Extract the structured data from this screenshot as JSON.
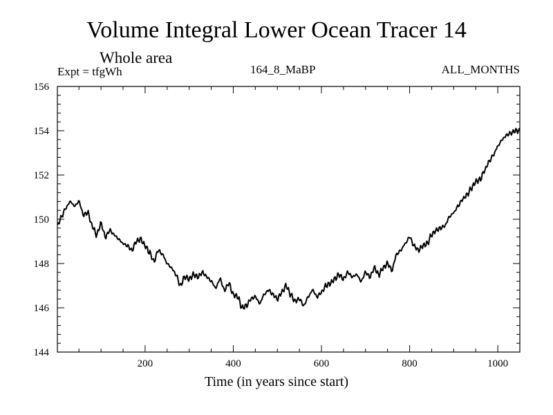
{
  "chart_data": {
    "type": "line",
    "title": "Volume Integral Lower Ocean Tracer 14",
    "subtitle": "Whole area",
    "annotations": {
      "left": "Expt = tfgWh",
      "center": "164_8_MaBP",
      "right": "ALL_MONTHS"
    },
    "xlabel": "Time (in years since start)",
    "ylabel": "",
    "xlim": [
      1,
      1050
    ],
    "ylim": [
      144,
      156
    ],
    "xticks": [
      200,
      400,
      600,
      800,
      1000
    ],
    "yticks": [
      144,
      146,
      148,
      150,
      152,
      154,
      156
    ],
    "grid": false,
    "series": [
      {
        "name": "Volume Integral Lower Ocean Tracer 14",
        "x": [
          1,
          10,
          20,
          30,
          40,
          50,
          60,
          70,
          80,
          90,
          100,
          110,
          120,
          130,
          140,
          150,
          160,
          170,
          180,
          190,
          200,
          210,
          220,
          230,
          240,
          250,
          260,
          270,
          280,
          290,
          300,
          310,
          320,
          330,
          340,
          350,
          360,
          370,
          380,
          390,
          400,
          410,
          420,
          430,
          440,
          450,
          460,
          470,
          480,
          490,
          500,
          510,
          520,
          530,
          540,
          550,
          560,
          570,
          580,
          590,
          600,
          610,
          620,
          630,
          640,
          650,
          660,
          670,
          680,
          690,
          700,
          710,
          720,
          730,
          740,
          750,
          760,
          770,
          780,
          790,
          800,
          810,
          820,
          830,
          840,
          850,
          860,
          870,
          880,
          890,
          900,
          910,
          920,
          930,
          940,
          950,
          960,
          970,
          980,
          990,
          1000,
          1010,
          1020,
          1030,
          1040,
          1050
        ],
        "values": [
          149.7,
          150.1,
          150.5,
          150.8,
          150.6,
          150.8,
          150.2,
          150.3,
          149.7,
          149.3,
          149.8,
          149.2,
          149.5,
          149.3,
          149.1,
          148.9,
          148.8,
          148.6,
          149.0,
          149.1,
          148.8,
          148.5,
          148.1,
          148.6,
          148.4,
          148.0,
          147.8,
          147.5,
          147.0,
          147.4,
          147.3,
          147.5,
          147.4,
          147.6,
          147.4,
          147.2,
          146.9,
          147.3,
          146.8,
          147.1,
          146.6,
          146.5,
          146.0,
          146.1,
          146.4,
          146.5,
          146.2,
          146.6,
          146.8,
          146.6,
          146.4,
          146.7,
          147.0,
          146.6,
          146.3,
          146.4,
          146.1,
          146.5,
          146.8,
          146.5,
          146.7,
          147.0,
          147.1,
          147.3,
          147.5,
          147.3,
          147.6,
          147.4,
          147.5,
          147.2,
          147.6,
          147.4,
          147.8,
          147.5,
          147.8,
          148.0,
          147.7,
          148.4,
          148.6,
          148.9,
          149.2,
          148.8,
          148.6,
          148.8,
          148.9,
          149.3,
          149.5,
          149.6,
          149.7,
          150.1,
          150.3,
          150.6,
          150.9,
          151.1,
          151.4,
          151.7,
          151.8,
          152.2,
          152.6,
          152.9,
          153.3,
          153.6,
          153.8,
          153.9,
          154.0,
          154.0
        ]
      }
    ]
  }
}
